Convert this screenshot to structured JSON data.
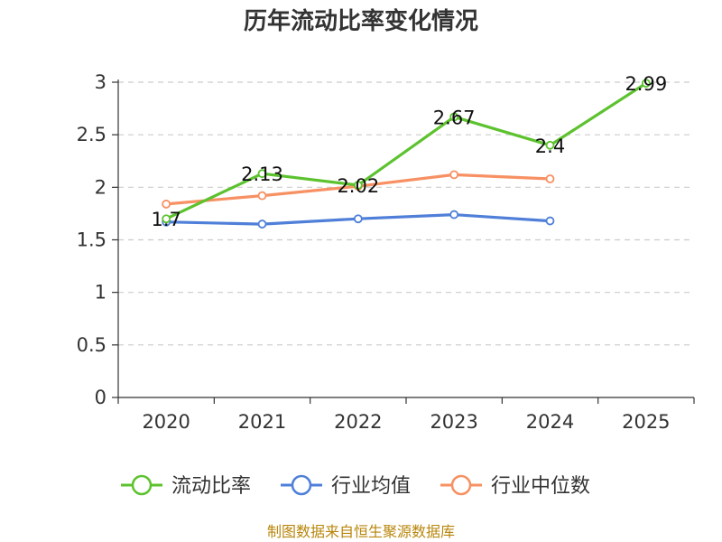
{
  "chart_data": {
    "type": "line",
    "title": "历年流动比率变化情况",
    "categories": [
      "2020",
      "2021",
      "2022",
      "2023",
      "2024",
      "2025"
    ],
    "y_ticks": [
      "0",
      "0.5",
      "1",
      "1.5",
      "2",
      "2.5",
      "3"
    ],
    "ylim": [
      0,
      3
    ],
    "grid": true,
    "legend_position": "bottom",
    "series": [
      {
        "name": "流动比率",
        "color": "#5cc22e",
        "values": [
          1.7,
          2.13,
          2.02,
          2.67,
          2.4,
          2.99
        ],
        "labels": [
          "1.7",
          "2.13",
          "2.02",
          "2.67",
          "2.4",
          "2.99"
        ]
      },
      {
        "name": "行业均值",
        "color": "#4f7fd8",
        "values": [
          1.67,
          1.65,
          1.7,
          1.74,
          1.68,
          null
        ]
      },
      {
        "name": "行业中位数",
        "color": "#f79062",
        "values": [
          1.84,
          1.92,
          2.01,
          2.12,
          2.08,
          null
        ]
      }
    ]
  },
  "source": "制图数据来自恒生聚源数据库"
}
